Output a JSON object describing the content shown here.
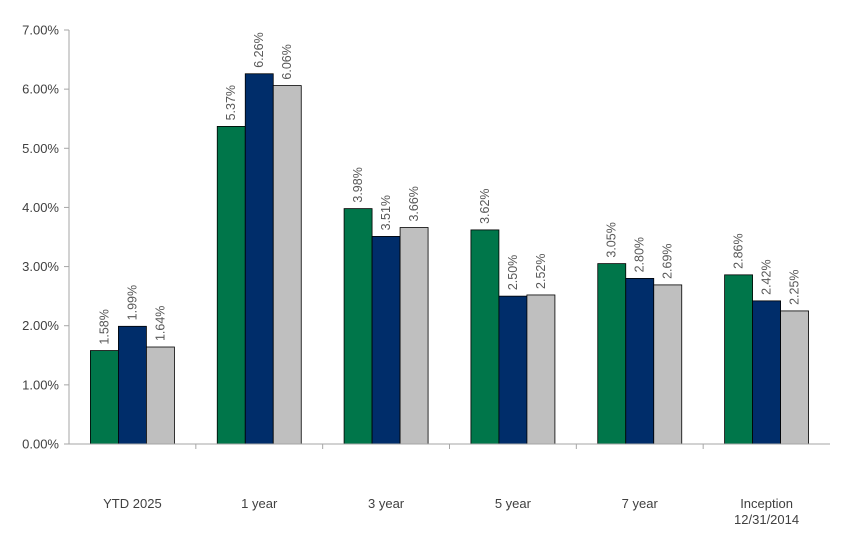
{
  "chart_data": {
    "type": "bar",
    "categories": [
      [
        "YTD 2025"
      ],
      [
        "1 year"
      ],
      [
        "3 year"
      ],
      [
        "5 year"
      ],
      [
        "7 year"
      ],
      [
        "Inception",
        "12/31/2014"
      ]
    ],
    "series": [
      {
        "values": [
          1.58,
          5.37,
          3.98,
          3.62,
          3.05,
          2.86
        ],
        "color": "#00764A"
      },
      {
        "values": [
          1.99,
          6.26,
          3.51,
          2.5,
          2.8,
          2.42
        ],
        "color": "#002D6A"
      },
      {
        "values": [
          1.64,
          6.06,
          3.66,
          2.52,
          2.69,
          2.25
        ],
        "color": "#BFBFBF"
      }
    ],
    "data_labels": [
      [
        "1.58%",
        "5.37%",
        "3.98%",
        "3.62%",
        "3.05%",
        "2.86%"
      ],
      [
        "1.99%",
        "6.26%",
        "3.51%",
        "2.50%",
        "2.80%",
        "2.42%"
      ],
      [
        "1.64%",
        "6.06%",
        "3.66%",
        "2.52%",
        "2.69%",
        "2.25%"
      ]
    ],
    "y_ticks": [
      0,
      1,
      2,
      3,
      4,
      5,
      6,
      7
    ],
    "y_tick_labels": [
      "0.00%",
      "1.00%",
      "2.00%",
      "3.00%",
      "4.00%",
      "5.00%",
      "6.00%",
      "7.00%"
    ],
    "ylim": [
      0,
      7
    ],
    "title": "",
    "xlabel": "",
    "ylabel": "",
    "grid": false,
    "legend": "none",
    "axis_color": "#A6A6A6"
  }
}
